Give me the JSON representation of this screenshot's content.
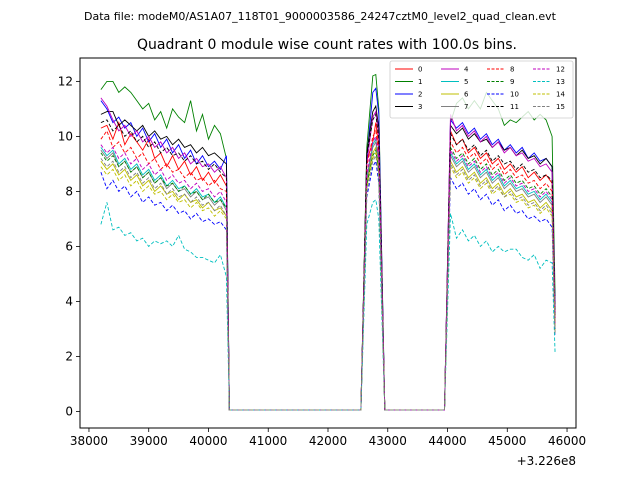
{
  "chart_data": {
    "type": "line",
    "suptitle": "Data file: modeM0/AS1A07_118T01_9000003586_24247cztM0_level2_quad_clean.evt",
    "title": "Quadrant 0 module wise count rates with 100.0s bins.",
    "xlabel": "",
    "ylabel": "",
    "x_offset_label": "+3.226e8",
    "xlim": [
      37850,
      46150
    ],
    "ylim": [
      -0.6,
      12.85
    ],
    "xticks": [
      38000,
      39000,
      40000,
      41000,
      42000,
      43000,
      44000,
      45000,
      46000
    ],
    "yticks": [
      0,
      2,
      4,
      6,
      8,
      10,
      12
    ],
    "x": [
      38200,
      38300,
      38400,
      38500,
      38600,
      38700,
      38800,
      38900,
      39000,
      39100,
      39200,
      39300,
      39400,
      39500,
      39600,
      39700,
      39800,
      39900,
      40000,
      40100,
      40200,
      40300,
      40350,
      40450,
      42550,
      42650,
      42750,
      42800,
      42850,
      42950,
      43050,
      43950,
      44050,
      44150,
      44250,
      44350,
      44450,
      44550,
      44650,
      44750,
      44850,
      44950,
      45050,
      45150,
      45250,
      45350,
      45450,
      45550,
      45650,
      45750,
      45800
    ],
    "series": [
      {
        "name": "0",
        "color": "#ff0000",
        "dash": false,
        "values": [
          10.3,
          10.4,
          9.9,
          10.5,
          9.7,
          10.1,
          9.8,
          9.5,
          9.9,
          9.2,
          9.4,
          8.9,
          9.3,
          8.8,
          9.1,
          8.6,
          8.9,
          8.4,
          8.7,
          8.3,
          8.6,
          8.2,
          0.05,
          0.05,
          0.05,
          9.1,
          9.8,
          10.5,
          9.6,
          0.05,
          0.05,
          0.05,
          10.2,
          9.7,
          9.9,
          9.4,
          9.6,
          9.2,
          9.4,
          9.0,
          9.2,
          8.8,
          9.0,
          8.7,
          8.9,
          8.5,
          8.7,
          8.4,
          8.6,
          8.3,
          3.3
        ]
      },
      {
        "name": "1",
        "color": "#008000",
        "dash": false,
        "values": [
          11.7,
          12.0,
          12.0,
          11.6,
          11.8,
          11.6,
          11.3,
          11.0,
          11.2,
          10.6,
          10.9,
          10.3,
          11.0,
          10.7,
          10.5,
          11.3,
          10.2,
          10.8,
          9.9,
          10.4,
          10.1,
          9.2,
          0.05,
          0.05,
          0.05,
          9.6,
          12.2,
          12.25,
          11.0,
          0.05,
          0.05,
          0.05,
          10.5,
          11.2,
          11.4,
          11.0,
          11.3,
          11.0,
          11.6,
          11.3,
          11.0,
          10.4,
          10.6,
          10.5,
          10.7,
          10.9,
          10.6,
          10.8,
          10.6,
          10.0,
          4.2
        ]
      },
      {
        "name": "2",
        "color": "#0000ff",
        "dash": false,
        "values": [
          11.3,
          11.0,
          10.5,
          10.7,
          10.3,
          10.5,
          10.0,
          10.3,
          9.8,
          10.1,
          9.6,
          9.9,
          9.4,
          9.7,
          9.2,
          9.5,
          9.0,
          9.3,
          8.9,
          9.1,
          8.8,
          9.3,
          0.05,
          0.05,
          0.05,
          9.2,
          11.6,
          11.75,
          10.8,
          0.05,
          0.05,
          0.05,
          10.6,
          10.3,
          10.5,
          10.1,
          10.3,
          9.9,
          10.1,
          9.7,
          9.9,
          9.5,
          9.7,
          9.4,
          9.6,
          9.2,
          9.4,
          9.1,
          9.2,
          8.9,
          3.7
        ]
      },
      {
        "name": "3",
        "color": "#000000",
        "dash": false,
        "values": [
          10.8,
          10.9,
          10.9,
          10.4,
          10.6,
          10.4,
          10.2,
          10.4,
          10.0,
          10.2,
          9.9,
          10.0,
          9.7,
          9.9,
          9.6,
          9.7,
          9.4,
          9.6,
          9.3,
          9.4,
          9.2,
          9.0,
          0.05,
          0.05,
          0.05,
          9.4,
          10.9,
          11.1,
          10.3,
          0.05,
          0.05,
          0.05,
          10.4,
          10.1,
          10.3,
          9.9,
          10.1,
          9.8,
          9.9,
          9.6,
          9.8,
          9.5,
          9.6,
          9.3,
          9.5,
          9.2,
          9.3,
          9.0,
          9.2,
          8.9,
          3.6
        ]
      },
      {
        "name": "4",
        "color": "#bf00bf",
        "dash": false,
        "values": [
          11.4,
          11.1,
          10.6,
          10.2,
          10.4,
          10.0,
          10.2,
          9.8,
          10.0,
          9.6,
          9.8,
          9.4,
          9.6,
          9.2,
          9.4,
          9.0,
          9.2,
          8.9,
          9.0,
          8.7,
          8.9,
          8.5,
          0.05,
          0.05,
          0.05,
          9.0,
          10.7,
          10.9,
          10.0,
          0.05,
          0.05,
          0.05,
          10.8,
          10.2,
          10.4,
          10.0,
          10.2,
          9.8,
          10.0,
          9.6,
          9.8,
          9.4,
          9.6,
          9.3,
          9.4,
          9.1,
          9.2,
          8.9,
          9.0,
          8.7,
          3.5
        ]
      },
      {
        "name": "5",
        "color": "#00bfbf",
        "dash": false,
        "values": [
          9.6,
          9.3,
          9.5,
          9.0,
          9.2,
          8.8,
          9.0,
          8.6,
          8.8,
          8.4,
          8.6,
          8.2,
          8.4,
          8.1,
          8.2,
          7.9,
          8.1,
          7.8,
          7.9,
          7.6,
          7.8,
          7.4,
          0.05,
          0.05,
          0.05,
          8.5,
          9.7,
          9.9,
          9.1,
          0.05,
          0.05,
          0.05,
          9.4,
          9.0,
          9.2,
          8.8,
          9.0,
          8.6,
          8.8,
          8.4,
          8.6,
          8.2,
          8.4,
          8.1,
          8.2,
          7.9,
          8.0,
          7.7,
          7.9,
          7.6,
          3.0
        ]
      },
      {
        "name": "6",
        "color": "#bfbf00",
        "dash": false,
        "values": [
          9.1,
          8.8,
          9.0,
          8.6,
          8.8,
          8.4,
          8.6,
          8.2,
          8.4,
          8.0,
          8.2,
          7.9,
          8.0,
          7.7,
          7.9,
          7.6,
          7.7,
          7.4,
          7.6,
          7.3,
          7.4,
          7.1,
          0.05,
          0.05,
          0.05,
          8.3,
          9.4,
          9.6,
          8.8,
          0.05,
          0.05,
          0.05,
          9.1,
          8.7,
          8.9,
          8.5,
          8.7,
          8.3,
          8.5,
          8.1,
          8.3,
          7.9,
          8.1,
          7.8,
          7.9,
          7.6,
          7.7,
          7.4,
          7.6,
          7.3,
          2.9
        ]
      },
      {
        "name": "7",
        "color": "#808080",
        "dash": false,
        "values": [
          9.5,
          9.2,
          9.4,
          8.9,
          9.1,
          8.7,
          8.9,
          8.5,
          8.7,
          8.3,
          8.5,
          8.1,
          8.3,
          8.0,
          8.1,
          7.8,
          8.0,
          7.7,
          7.8,
          7.5,
          7.7,
          7.3,
          0.05,
          0.05,
          0.05,
          8.4,
          9.6,
          9.8,
          9.0,
          0.05,
          0.05,
          0.05,
          9.3,
          8.9,
          9.1,
          8.7,
          8.9,
          8.5,
          8.7,
          8.3,
          8.5,
          8.1,
          8.3,
          8.0,
          8.1,
          7.8,
          7.9,
          7.6,
          7.8,
          7.5,
          3.0
        ]
      },
      {
        "name": "8",
        "color": "#ff0000",
        "dash": true,
        "values": [
          9.9,
          10.2,
          9.6,
          9.8,
          9.4,
          9.6,
          9.2,
          9.4,
          9.0,
          9.2,
          8.8,
          9.0,
          8.7,
          8.8,
          8.5,
          8.7,
          8.4,
          8.5,
          8.2,
          8.4,
          8.1,
          8.0,
          0.05,
          0.05,
          0.05,
          8.9,
          10.0,
          10.2,
          9.4,
          0.05,
          0.05,
          0.05,
          9.8,
          9.4,
          9.6,
          9.2,
          9.4,
          9.0,
          9.2,
          8.8,
          9.0,
          8.6,
          8.8,
          8.5,
          8.6,
          8.3,
          8.4,
          8.1,
          8.3,
          8.0,
          3.2
        ]
      },
      {
        "name": "9",
        "color": "#008000",
        "dash": true,
        "values": [
          9.4,
          9.1,
          9.3,
          8.9,
          9.1,
          8.7,
          8.9,
          8.5,
          8.7,
          8.3,
          8.5,
          8.2,
          8.3,
          8.0,
          8.2,
          7.9,
          8.0,
          7.7,
          7.9,
          7.6,
          7.7,
          7.4,
          0.05,
          0.05,
          0.05,
          8.2,
          9.3,
          9.5,
          8.7,
          0.05,
          0.05,
          0.05,
          9.6,
          9.2,
          9.4,
          9.0,
          9.2,
          8.8,
          9.0,
          8.6,
          8.8,
          8.4,
          8.6,
          8.3,
          8.4,
          8.1,
          8.2,
          7.9,
          8.1,
          7.8,
          3.1
        ]
      },
      {
        "name": "10",
        "color": "#0000ff",
        "dash": true,
        "values": [
          8.7,
          8.1,
          8.4,
          8.0,
          8.2,
          7.8,
          8.0,
          7.6,
          7.8,
          7.5,
          7.6,
          7.3,
          7.5,
          7.2,
          7.3,
          7.0,
          7.2,
          6.9,
          7.0,
          6.8,
          6.9,
          6.6,
          0.05,
          0.05,
          0.05,
          7.8,
          8.9,
          9.1,
          8.3,
          0.05,
          0.05,
          0.05,
          8.5,
          8.1,
          8.3,
          7.9,
          8.1,
          7.7,
          7.9,
          7.5,
          7.7,
          7.3,
          7.5,
          7.2,
          7.3,
          7.0,
          7.1,
          6.9,
          7.0,
          6.7,
          2.8
        ]
      },
      {
        "name": "11",
        "color": "#000000",
        "dash": true,
        "values": [
          10.5,
          10.6,
          10.2,
          10.4,
          10.0,
          10.2,
          9.8,
          10.0,
          9.6,
          9.8,
          9.4,
          9.6,
          9.3,
          9.4,
          9.1,
          9.3,
          9.0,
          9.1,
          8.8,
          9.0,
          8.7,
          8.5,
          0.05,
          0.05,
          0.05,
          9.3,
          10.6,
          10.8,
          9.9,
          0.05,
          0.05,
          0.05,
          10.1,
          9.7,
          9.9,
          9.5,
          9.7,
          9.3,
          9.5,
          9.1,
          9.3,
          9.0,
          9.1,
          8.8,
          9.0,
          8.7,
          8.8,
          8.5,
          8.6,
          8.4,
          3.4
        ]
      },
      {
        "name": "12",
        "color": "#bf00bf",
        "dash": true,
        "values": [
          9.7,
          9.4,
          9.6,
          9.2,
          9.4,
          9.0,
          9.2,
          8.8,
          9.0,
          8.6,
          8.8,
          8.4,
          8.6,
          8.3,
          8.4,
          8.1,
          8.3,
          8.0,
          8.1,
          7.8,
          8.0,
          7.6,
          0.05,
          0.05,
          0.05,
          8.6,
          9.8,
          10.0,
          9.2,
          0.05,
          0.05,
          0.05,
          9.5,
          9.1,
          9.3,
          8.9,
          9.1,
          8.7,
          8.9,
          8.5,
          8.7,
          8.3,
          8.5,
          8.2,
          8.3,
          8.0,
          8.1,
          7.8,
          8.0,
          7.7,
          3.1
        ]
      },
      {
        "name": "13",
        "color": "#00bfbf",
        "dash": true,
        "values": [
          6.8,
          7.6,
          6.6,
          6.7,
          6.4,
          6.5,
          6.2,
          6.3,
          6.0,
          6.2,
          6.1,
          6.2,
          6.0,
          6.4,
          5.9,
          5.8,
          5.6,
          5.6,
          5.5,
          5.4,
          5.7,
          4.9,
          0.05,
          0.05,
          0.05,
          6.8,
          7.6,
          7.7,
          7.0,
          0.05,
          0.05,
          0.05,
          7.2,
          6.3,
          6.6,
          6.2,
          6.4,
          6.0,
          6.2,
          5.8,
          6.0,
          5.8,
          5.9,
          5.9,
          5.6,
          5.5,
          5.7,
          5.2,
          5.5,
          5.4,
          2.1
        ]
      },
      {
        "name": "14",
        "color": "#bfbf00",
        "dash": true,
        "values": [
          8.9,
          8.6,
          8.8,
          8.4,
          8.6,
          8.2,
          8.4,
          8.0,
          8.2,
          7.9,
          8.0,
          7.7,
          7.9,
          7.6,
          7.7,
          7.4,
          7.6,
          7.3,
          7.4,
          7.1,
          7.3,
          7.0,
          0.05,
          0.05,
          0.05,
          8.1,
          9.2,
          9.4,
          8.6,
          0.05,
          0.05,
          0.05,
          8.9,
          8.5,
          8.7,
          8.3,
          8.5,
          8.1,
          8.3,
          7.9,
          8.1,
          7.8,
          7.9,
          7.6,
          7.7,
          7.4,
          7.5,
          7.2,
          7.4,
          7.1,
          2.9
        ]
      },
      {
        "name": "15",
        "color": "#808080",
        "dash": true,
        "values": [
          9.2,
          8.9,
          9.1,
          8.7,
          8.9,
          8.5,
          8.7,
          8.3,
          8.5,
          8.1,
          8.3,
          7.9,
          8.1,
          7.8,
          7.9,
          7.6,
          7.8,
          7.5,
          7.6,
          7.3,
          7.5,
          7.1,
          0.05,
          0.05,
          0.05,
          8.0,
          9.1,
          9.3,
          8.5,
          0.05,
          0.05,
          0.05,
          9.0,
          8.6,
          8.8,
          8.4,
          8.6,
          8.2,
          8.4,
          8.0,
          8.2,
          7.8,
          8.0,
          7.7,
          7.8,
          7.5,
          7.6,
          7.3,
          7.5,
          7.2,
          2.8
        ]
      }
    ]
  }
}
